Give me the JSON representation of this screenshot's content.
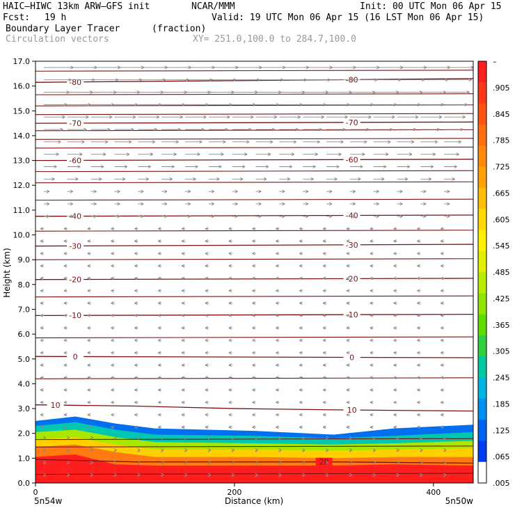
{
  "header": {
    "model": "HAIC–HIWC 13km ARW–GFS init",
    "org": "NCAR/MMM",
    "init": "Init: 00 UTC Mon 06 Apr 15",
    "fcst_label": "Fcst:",
    "fcst_value": "19 h",
    "valid": "Valid: 19 UTC Mon 06 Apr 15 (16 LST Mon 06 Apr 15)",
    "field": "Boundary Layer Tracer",
    "field_units": "(fraction)",
    "vector_field": "Circulation vectors",
    "xsec": "XY= 251.0,100.0 to 284.7,100.0"
  },
  "chart_data": {
    "type": "cross-section",
    "xlabel": "Distance (km)",
    "ylabel": "Height (km)",
    "xlim": [
      0,
      440
    ],
    "ylim": [
      0,
      17
    ],
    "xticks": [
      0,
      200,
      400
    ],
    "xticklabels": [
      "0",
      "200",
      "400"
    ],
    "yticks": [
      0,
      1,
      2,
      3,
      4,
      5,
      6,
      7,
      8,
      9,
      10,
      11,
      12,
      13,
      14,
      15,
      16,
      17
    ],
    "yticklabels": [
      "0.0",
      "1.0",
      "2.0",
      "3.0",
      "4.0",
      "5.0",
      "6.0",
      "7.0",
      "8.0",
      "9.0",
      "10.0",
      "11.0",
      "12.0",
      "13.0",
      "14.0",
      "15.0",
      "16.0",
      "17.0"
    ],
    "endpoint_left": "5n54w",
    "endpoint_right": "5n50w",
    "colorbar": {
      "labels": [
        "–",
        ".905",
        ".845",
        ".785",
        ".725",
        ".665",
        ".605",
        ".545",
        ".485",
        ".425",
        ".365",
        ".305",
        ".245",
        ".185",
        ".125",
        ".065",
        ".005"
      ],
      "colors": [
        "#ff2020",
        "#ff3a1a",
        "#ff5414",
        "#ff6e10",
        "#ff8a0c",
        "#ffa208",
        "#ffbe06",
        "#ffd804",
        "#fff000",
        "#e0f000",
        "#b8ec00",
        "#90e400",
        "#60dc00",
        "#30d040",
        "#00c8a0",
        "#00b4e0",
        "#0090f0",
        "#0064f0",
        "#003cf0",
        "#ffffff"
      ]
    },
    "tracer_height_km": [
      {
        "x": 0,
        "band": [
          1.05,
          1.45,
          1.75,
          2.05,
          2.3,
          2.5
        ]
      },
      {
        "x": 40,
        "band": [
          1.15,
          1.55,
          1.85,
          2.15,
          2.45,
          2.68
        ]
      },
      {
        "x": 80,
        "band": [
          0.75,
          1.25,
          1.55,
          1.85,
          2.15,
          2.4
        ]
      },
      {
        "x": 120,
        "band": [
          0.7,
          1.05,
          1.35,
          1.65,
          1.95,
          2.2
        ]
      },
      {
        "x": 220,
        "band": [
          0.7,
          1.05,
          1.35,
          1.6,
          1.9,
          2.1
        ]
      },
      {
        "x": 300,
        "band": [
          0.7,
          1.0,
          1.3,
          1.55,
          1.8,
          1.95
        ]
      },
      {
        "x": 360,
        "band": [
          0.75,
          1.05,
          1.35,
          1.6,
          1.9,
          2.2
        ]
      },
      {
        "x": 440,
        "band": [
          0.7,
          1.05,
          1.4,
          1.7,
          2.05,
          2.35
        ]
      }
    ],
    "temperature_contours": [
      {
        "value": 10,
        "label": "10",
        "heights": [
          [
            0,
            3.15
          ],
          [
            100,
            3.1
          ],
          [
            200,
            3.0
          ],
          [
            300,
            2.95
          ],
          [
            440,
            2.9
          ]
        ],
        "label_x": [
          20,
          318
        ]
      },
      {
        "value": 0,
        "label": "0",
        "heights": [
          [
            0,
            5.1
          ],
          [
            440,
            5.05
          ]
        ],
        "label_x": [
          40,
          318
        ]
      },
      {
        "value": -10,
        "label": "-10",
        "heights": [
          [
            0,
            6.75
          ],
          [
            440,
            6.8
          ]
        ],
        "label_x": [
          40,
          318
        ]
      },
      {
        "value": -20,
        "label": "-20",
        "heights": [
          [
            0,
            8.2
          ],
          [
            440,
            8.25
          ]
        ],
        "label_x": [
          40,
          318
        ]
      },
      {
        "value": -30,
        "label": "-30",
        "heights": [
          [
            0,
            9.55
          ],
          [
            440,
            9.62
          ]
        ],
        "label_x": [
          40,
          318
        ]
      },
      {
        "value": -40,
        "label": "-40",
        "heights": [
          [
            0,
            10.75
          ],
          [
            440,
            10.8
          ]
        ],
        "label_x": [
          40,
          318
        ]
      },
      {
        "value": -60,
        "label": "-60",
        "heights": [
          [
            0,
            13.0
          ],
          [
            440,
            13.05
          ]
        ],
        "label_x": [
          40,
          318
        ]
      },
      {
        "value": -70,
        "label": "-70",
        "heights": [
          [
            0,
            14.5
          ],
          [
            440,
            14.55
          ]
        ],
        "label_x": [
          40,
          318
        ]
      },
      {
        "value": -80,
        "label": "-80",
        "heights": [
          [
            0,
            16.15
          ],
          [
            440,
            16.3
          ]
        ],
        "label_x": [
          40,
          318
        ]
      },
      {
        "value": 20,
        "label": "20",
        "heights": [
          [
            0,
            0.95
          ],
          [
            100,
            0.85
          ],
          [
            300,
            0.85
          ],
          [
            440,
            0.8
          ]
        ],
        "label_x": [
          290
        ]
      }
    ],
    "unlabeled_contour_heights": [
      0.35,
      1.45,
      1.75,
      4.2,
      5.85,
      7.5,
      9.0,
      10.15,
      11.4,
      12.1,
      12.55,
      13.5,
      13.85,
      14.2,
      14.85,
      15.2,
      15.65,
      16.6
    ]
  }
}
